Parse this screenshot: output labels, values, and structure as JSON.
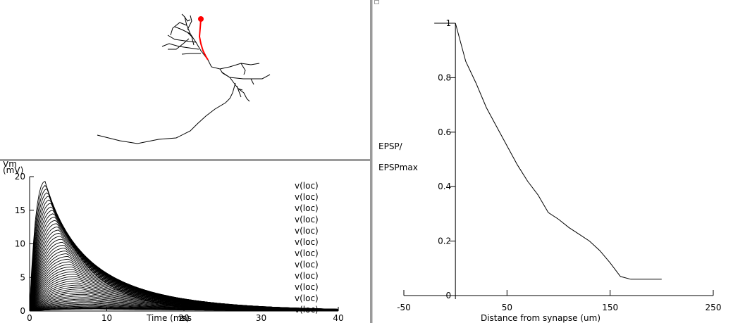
{
  "morphology": {
    "highlight_color": "#ff0000",
    "dendrite_color": "#000000"
  },
  "voltage_plot": {
    "ylabel_line1": "Vm",
    "ylabel_line2": "(mV)",
    "xlabel": "Time (ms)",
    "xtick_overlay": "ms",
    "xticks": [
      "0",
      "10",
      "20",
      "30",
      "40"
    ],
    "yticks": [
      "0",
      "5",
      "10",
      "15",
      "20"
    ],
    "legend": [
      "v(loc)",
      "v(loc)",
      "v(loc)",
      "v(loc)",
      "v(loc)",
      "v(loc)",
      "v(loc)",
      "v(loc)",
      "v(loc)",
      "v(loc)",
      "v(loc)",
      "v(loc)"
    ]
  },
  "chart_data": {
    "type": "line",
    "ylabel_line1": "EPSP/",
    "ylabel_line2": "EPSPmax",
    "xlabel": "Distance from synapse (um)",
    "xticks": [
      "-50",
      "50",
      "150",
      "250"
    ],
    "yticks": [
      "0",
      "0.2",
      "0.4",
      "0.6",
      "0.8",
      "1"
    ],
    "x": [
      0,
      10,
      20,
      30,
      40,
      50,
      60,
      70,
      80,
      90,
      100,
      110,
      120,
      130,
      140,
      150,
      160,
      170,
      180,
      190,
      200
    ],
    "y": [
      1.0,
      0.86,
      0.78,
      0.69,
      0.62,
      0.55,
      0.48,
      0.42,
      0.37,
      0.305,
      0.28,
      0.25,
      0.225,
      0.2,
      0.165,
      0.12,
      0.07,
      0.06,
      0.06,
      0.06,
      0.06
    ]
  }
}
